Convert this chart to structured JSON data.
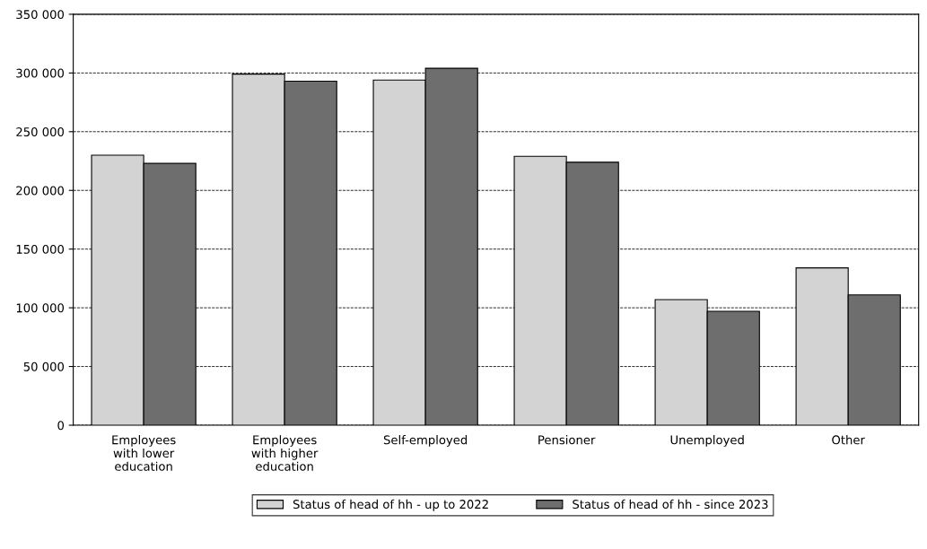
{
  "chart_data": {
    "type": "bar",
    "categories": [
      "Employees\nwith lower\neducation",
      "Employees\nwith higher\neducation",
      "Self-employed",
      "Pensioner",
      "Unemployed",
      "Other"
    ],
    "series": [
      {
        "name": "Status of head of hh - up to 2022",
        "color": "#d3d3d3",
        "values": [
          230000,
          299000,
          294000,
          229000,
          107000,
          134000
        ]
      },
      {
        "name": "Status of head of hh - since 2023",
        "color": "#6e6e6e",
        "values": [
          223000,
          293000,
          304000,
          224000,
          97000,
          111000
        ]
      }
    ],
    "ylim": [
      0,
      350000
    ],
    "yticks": [
      0,
      {
        "value": 50000,
        "label": "50 000"
      },
      {
        "value": 100000,
        "label": "100 000"
      },
      {
        "value": 150000,
        "label": "150 000"
      },
      {
        "value": 200000,
        "label": "200 000"
      },
      {
        "value": 250000,
        "label": "250 000"
      },
      {
        "value": 300000,
        "label": "300 000"
      },
      {
        "value": 350000,
        "label": "350 000"
      }
    ],
    "grid": "y",
    "line_style": "dashed",
    "legend": "bottom"
  }
}
